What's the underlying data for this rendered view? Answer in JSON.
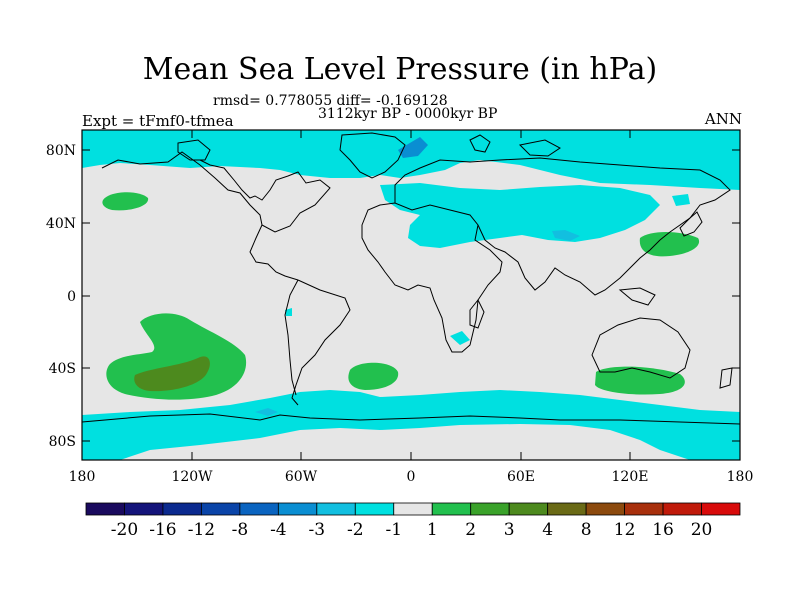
{
  "title": "Mean Sea Level Pressure (in hPa)",
  "stats": "rmsd= 0.778055 diff= -0.169128",
  "period": "3112kyr BP - 0000kyr BP",
  "experiment": "Expt = tFmf0-tfmea",
  "season": "ANN",
  "lat_labels": [
    "80N",
    "40N",
    "0",
    "40S",
    "80S"
  ],
  "lon_labels": [
    "180",
    "120W",
    "60W",
    "0",
    "60E",
    "120E",
    "180"
  ],
  "colorbar": {
    "labels": [
      "-20",
      "-16",
      "-12",
      "-8",
      "-4",
      "-3",
      "-2",
      "-1",
      "1",
      "2",
      "3",
      "4",
      "8",
      "12",
      "16",
      "20"
    ],
    "colors": [
      "#1a0a5e",
      "#14147a",
      "#0b2a8f",
      "#0a44a8",
      "#0a64c0",
      "#0a8ed2",
      "#12bfe0",
      "#00e0e0",
      "#e6e6e6",
      "#22c04e",
      "#3aa22a",
      "#4d8a1e",
      "#6a6a16",
      "#8c4a0e",
      "#a8300c",
      "#c01a0a",
      "#d80a0a"
    ]
  },
  "colors": {
    "background_field": "#e6e6e6",
    "negative_1": "#00e0e0",
    "negative_2": "#12bfe0",
    "negative_3": "#0a8ed2",
    "positive_1": "#22c04e",
    "positive_3": "#4d8a1e"
  }
}
